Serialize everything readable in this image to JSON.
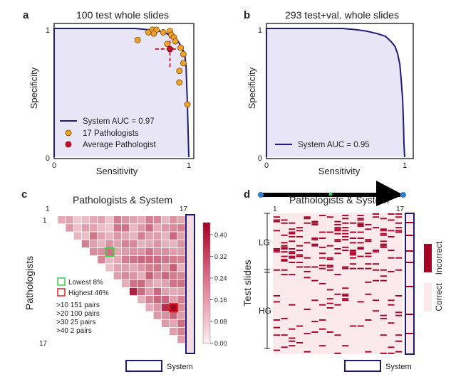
{
  "panels": {
    "a": {
      "letter": "a",
      "title": "100 test whole slides"
    },
    "b": {
      "letter": "b",
      "title": "293 test+val. whole slides"
    },
    "c": {
      "letter": "c",
      "title": "Pathologists & System"
    },
    "d": {
      "letter": "d",
      "title": "Pathologists & System"
    }
  },
  "roc_axes": {
    "xlabel": "Sensitivity",
    "ylabel": "Specificity",
    "tick_0": "0",
    "tick_1": "1"
  },
  "legend_a": {
    "system": "System AUC = 0.97",
    "pathologists": "17 Pathologists",
    "average": "Average Pathologist"
  },
  "legend_b": {
    "system": "System AUC = 0.95"
  },
  "colors": {
    "roc_line": "#1f1b7a",
    "roc_fill": "#e8e6f6",
    "pathologist": "#f0a22a",
    "average": "#c8102e",
    "heat_low": "#fbeef0",
    "heat_high": "#a50026",
    "lowest_box": "#39d14a",
    "highest_box": "#e02020"
  },
  "heatmap_c": {
    "ylabel": "Pathologists",
    "tick_first": "1",
    "tick_last": "17",
    "top_tick_first": "1",
    "top_tick_last": "17",
    "colorbar_ticks": [
      "0.40",
      "0.32",
      "0.24",
      "0.16",
      "0.08",
      "0.00"
    ],
    "legend": {
      "lowest": "Lowest 8%",
      "highest": "Highest 46%",
      "pairs": [
        ">10 151 pairs",
        ">20 100 pairs",
        ">30  25 pairs",
        ">40  2 pairs"
      ]
    },
    "system_label": "System"
  },
  "matrix_d": {
    "ylabel": "Test slides",
    "top_tick_first": "1",
    "top_tick_last": "17",
    "group_lg": "LG",
    "group_hg": "HG",
    "legend_incorrect": "Incorrect",
    "legend_correct": "Correct",
    "system_label": "System"
  },
  "chart_data": [
    {
      "type": "line",
      "panel": "a",
      "title": "100 test whole slides",
      "xlabel": "Sensitivity",
      "ylabel": "Specificity",
      "xlim": [
        0,
        1
      ],
      "ylim": [
        0,
        1
      ],
      "series": [
        {
          "name": "System AUC = 0.97",
          "x": [
            0,
            0,
            0.6,
            0.7,
            0.78,
            0.86,
            0.92,
            0.95,
            0.97,
            0.98,
            0.99,
            1.0
          ],
          "y": [
            0,
            1.0,
            1.0,
            0.99,
            0.98,
            0.95,
            0.9,
            0.85,
            0.8,
            0.7,
            0.4,
            0.0
          ]
        }
      ],
      "scatter": {
        "name": "17 Pathologists",
        "points": [
          [
            0.62,
            0.91
          ],
          [
            0.7,
            0.97
          ],
          [
            0.73,
            0.99
          ],
          [
            0.76,
            0.99
          ],
          [
            0.74,
            0.96
          ],
          [
            0.81,
            0.97
          ],
          [
            0.86,
            0.98
          ],
          [
            0.87,
            0.95
          ],
          [
            0.89,
            0.93
          ],
          [
            0.9,
            0.9
          ],
          [
            0.84,
            0.88
          ],
          [
            0.94,
            0.85
          ],
          [
            0.96,
            0.8
          ],
          [
            0.96,
            0.73
          ],
          [
            0.93,
            0.67
          ],
          [
            0.93,
            0.58
          ],
          [
            0.99,
            0.41
          ]
        ]
      },
      "average": {
        "name": "Average Pathologist",
        "x": 0.86,
        "y": 0.84,
        "x_err": [
          0.75,
          0.94
        ],
        "y_err": [
          0.7,
          0.96
        ]
      }
    },
    {
      "type": "line",
      "panel": "b",
      "title": "293 test+val. whole slides",
      "xlabel": "Sensitivity",
      "ylabel": "Specificity",
      "xlim": [
        0,
        1
      ],
      "ylim": [
        0,
        1
      ],
      "series": [
        {
          "name": "System AUC = 0.95",
          "x": [
            0,
            0,
            0.55,
            0.65,
            0.72,
            0.8,
            0.86,
            0.9,
            0.93,
            0.95,
            0.965,
            0.975,
            0.985,
            0.99,
            0.995,
            1.0
          ],
          "y": [
            0,
            1.0,
            1.0,
            0.99,
            0.98,
            0.96,
            0.94,
            0.9,
            0.86,
            0.8,
            0.72,
            0.6,
            0.45,
            0.3,
            0.1,
            0.0
          ]
        }
      ]
    },
    {
      "type": "heatmap",
      "panel": "c",
      "title": "Pathologists & System",
      "size": 17,
      "color_range": [
        0.0,
        0.44
      ],
      "lowest_cell": [
        7,
        4
      ],
      "highest_cell": [
        15,
        11
      ]
    }
  ]
}
